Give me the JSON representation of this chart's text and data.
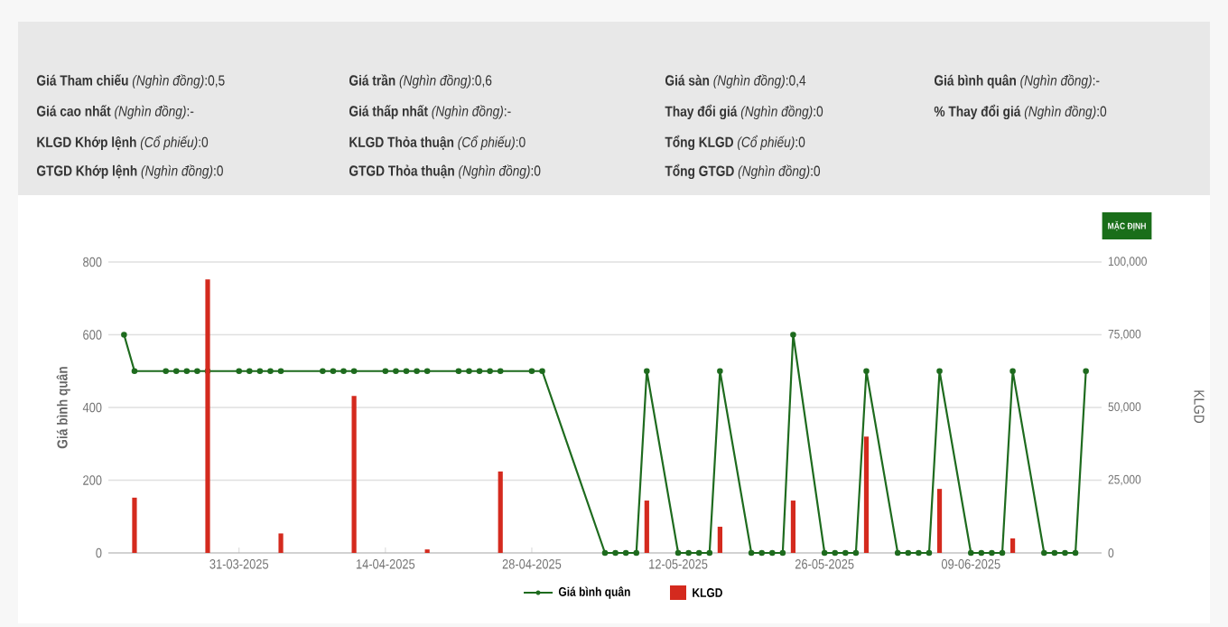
{
  "chart_data": {
    "type": "line",
    "xlabel": null,
    "ylabel": "Giá bình quân",
    "y2label": "KLGD",
    "xlim": [
      "2025-03-18T12:00",
      "2025-06-21T12:00"
    ],
    "xticks": [
      {
        "value": "2025-03-31",
        "label": "31-03-2025"
      },
      {
        "value": "2025-04-14",
        "label": "14-04-2025"
      },
      {
        "value": "2025-04-28",
        "label": "28-04-2025"
      },
      {
        "value": "2025-05-12",
        "label": "12-05-2025"
      },
      {
        "value": "2025-05-26",
        "label": "26-05-2025"
      },
      {
        "value": "2025-06-09",
        "label": "09-06-2025"
      }
    ],
    "ylim": [
      0,
      800
    ],
    "yticks": [
      0,
      200,
      400,
      600,
      800
    ],
    "y2lim": [
      0,
      100000
    ],
    "y2ticks": [
      0,
      {
        "value": 25000,
        "label": "25,000"
      },
      {
        "value": 50000,
        "label": "50,000"
      },
      {
        "value": 75000,
        "label": "75,000"
      },
      {
        "value": 100000,
        "label": "100,000"
      }
    ],
    "grid": "y",
    "legend": "bottom",
    "marker": "circle",
    "series": [
      {
        "name": "Giá bình quân",
        "color": "#1e6b1e",
        "x": [
          "2025-03-20",
          "2025-03-21",
          "2025-03-24",
          "2025-03-25",
          "2025-03-26",
          "2025-03-27",
          "2025-03-28",
          "2025-03-31",
          "2025-04-01",
          "2025-04-02",
          "2025-04-03",
          "2025-04-04",
          "2025-04-08",
          "2025-04-09",
          "2025-04-10",
          "2025-04-11",
          "2025-04-14",
          "2025-04-15",
          "2025-04-16",
          "2025-04-17",
          "2025-04-18",
          "2025-04-21",
          "2025-04-22",
          "2025-04-23",
          "2025-04-24",
          "2025-04-25",
          "2025-04-28",
          "2025-04-29",
          "2025-05-05",
          "2025-05-06",
          "2025-05-07",
          "2025-05-08",
          "2025-05-09",
          "2025-05-12",
          "2025-05-13",
          "2025-05-14",
          "2025-05-15",
          "2025-05-16",
          "2025-05-19",
          "2025-05-20",
          "2025-05-21",
          "2025-05-22",
          "2025-05-23",
          "2025-05-26",
          "2025-05-27",
          "2025-05-28",
          "2025-05-29",
          "2025-05-30",
          "2025-06-02",
          "2025-06-03",
          "2025-06-04",
          "2025-06-05",
          "2025-06-06",
          "2025-06-09",
          "2025-06-10",
          "2025-06-11",
          "2025-06-12",
          "2025-06-13",
          "2025-06-16",
          "2025-06-17",
          "2025-06-18",
          "2025-06-19",
          "2025-06-20"
        ],
        "values": [
          600,
          500,
          500,
          500,
          500,
          500,
          500,
          500,
          500,
          500,
          500,
          500,
          500,
          500,
          500,
          500,
          500,
          500,
          500,
          500,
          500,
          500,
          500,
          500,
          500,
          500,
          500,
          500,
          0,
          0,
          0,
          0,
          500,
          0,
          0,
          0,
          0,
          500,
          0,
          0,
          0,
          0,
          600,
          0,
          0,
          0,
          0,
          500,
          0,
          0,
          0,
          0,
          500,
          0,
          0,
          0,
          0,
          500,
          0,
          0,
          0,
          0,
          500
        ]
      },
      {
        "name": "KLGD",
        "type": "bar",
        "axis": "y2",
        "color": "#d42a1e",
        "x": [
          "2025-03-21",
          "2025-03-28",
          "2025-04-04",
          "2025-04-11",
          "2025-04-18",
          "2025-04-25",
          "2025-05-09",
          "2025-05-16",
          "2025-05-23",
          "2025-05-30",
          "2025-06-06",
          "2025-06-13"
        ],
        "values": [
          19000,
          94000,
          6700,
          54000,
          1200,
          28000,
          18000,
          9000,
          18000,
          40000,
          22000,
          5000
        ]
      }
    ],
    "annotations": [
      "**Giá Tham chiếu** *(Nghìn đồng)*:0,5",
      "**Giá trần** *(Nghìn đồng)*:0,6",
      "**Giá sàn** *(Nghìn đồng)*:0,4",
      "**Giá bình quân** *(Nghìn đồng)*:-",
      "**Giá cao nhất** *(Nghìn đồng)*:-",
      "**Giá thấp nhất** *(Nghìn đồng)*:-",
      "**Thay đổi giá** *(Nghìn đồng)*:0",
      "**% Thay đổi giá** *(Nghìn đồng)*:0",
      "**KLGD Khớp lệnh** *(Cổ phiếu)*:0",
      "**KLGD Thỏa thuận** *(Cổ phiếu)*:0",
      "**Tổng KLGD** *(Cổ phiếu)*:0",
      "**GTGD Khớp lệnh** *(Nghìn đồng)*:0",
      "**GTGD Thỏa thuận** *(Nghìn đồng)*:0",
      "**Tổng GTGD** *(Nghìn đồng)*:0",
      "MẶC ĐỊNH"
    ]
  }
}
